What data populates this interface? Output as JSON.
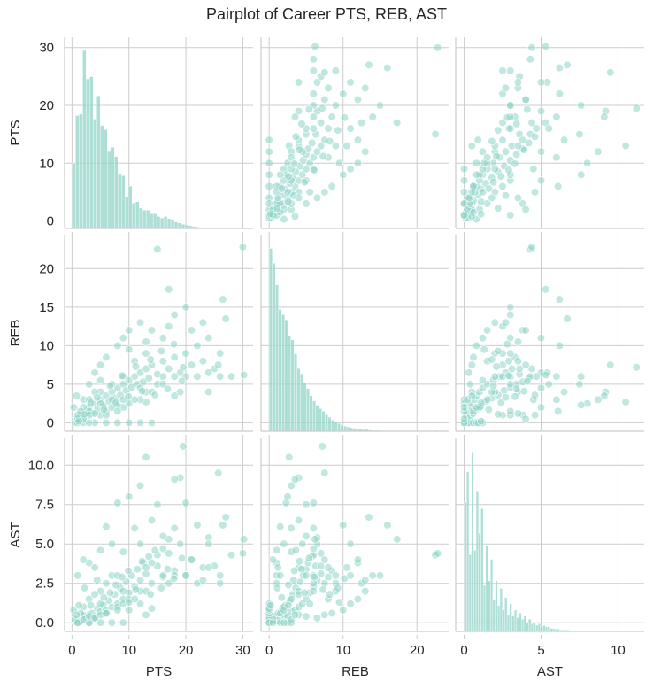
{
  "chart_data": {
    "type": "pairplot",
    "title": "Pairplot of Career PTS, REB, AST",
    "variables": [
      "PTS",
      "REB",
      "AST"
    ],
    "grid": true,
    "color": "#8dd3c7",
    "axes": {
      "PTS": {
        "lim": [
          -1.3,
          31.8
        ],
        "ticks": [
          0,
          10,
          20,
          30
        ],
        "tick_labels": [
          "0",
          "10",
          "20",
          "30"
        ]
      },
      "REB": {
        "lim": [
          -1.1,
          24.4
        ],
        "ticks": [
          0,
          5,
          10,
          15,
          20
        ],
        "x_ticks": [
          0,
          10,
          20
        ],
        "tick_labels": [
          "0",
          "5",
          "10",
          "15",
          "20"
        ],
        "x_tick_labels": [
          "0",
          "10",
          "20"
        ]
      },
      "AST": {
        "lim": [
          -0.55,
          11.7
        ],
        "ticks": [
          0,
          2.5,
          5,
          7.5,
          10
        ],
        "x_ticks": [
          0,
          5,
          10
        ],
        "tick_labels": [
          "0.0",
          "2.5",
          "5.0",
          "7.5",
          "10.0"
        ],
        "x_tick_labels": [
          "0",
          "5",
          "10"
        ]
      }
    },
    "histograms": {
      "PTS": {
        "bin_width": 0.62,
        "relative_counts": [
          9.2,
          16,
          16.2,
          25.2,
          21.2,
          21.5,
          15.5,
          18.8,
          14.6,
          14,
          10.9,
          11.5,
          10.2,
          7.7,
          7.5,
          4.5,
          6,
          3.6,
          3.8,
          2.9,
          2.6,
          2.6,
          2.1,
          2.1,
          1.7,
          1.5,
          1.7,
          1.4,
          1.3,
          0.9,
          0.8,
          0.6,
          0.5,
          0.4,
          0.3,
          0.2,
          0.15,
          0.1,
          0,
          0.1,
          0,
          0,
          0.1,
          0,
          0,
          0,
          0.05
        ]
      },
      "REB": {
        "bin_width": 0.42,
        "relative_counts": [
          21,
          19.3,
          16.8,
          14,
          13.4,
          12.8,
          11,
          10.5,
          8.9,
          7.2,
          6.6,
          5.6,
          4.9,
          4.1,
          3.5,
          3,
          2.6,
          2.3,
          1.9,
          1.6,
          1.3,
          1.1,
          0.9,
          0.7,
          0.6,
          0.5,
          0.4,
          0.35,
          0.3,
          0.25,
          0.2,
          0.2,
          0.15,
          0.1,
          0.1,
          0.1,
          0.05,
          0.05,
          0.05,
          0.05,
          0,
          0.05,
          0,
          0,
          0.05,
          0,
          0,
          0,
          0,
          0,
          0,
          0,
          0,
          0.1
        ]
      },
      "AST": {
        "bin_width": 0.155,
        "relative_counts": [
          8.4,
          10.4,
          5,
          11.7,
          5.3,
          9.1,
          6.4,
          8,
          3,
          5.6,
          3.3,
          4.7,
          2.1,
          3.3,
          1.7,
          2.8,
          1.4,
          2.2,
          1.1,
          1.8,
          1,
          1.4,
          0.9,
          1.2,
          0.8,
          1,
          0.6,
          0.8,
          0.5,
          0.6,
          0.4,
          0.5,
          0.3,
          0.4,
          0.3,
          0.3,
          0.2,
          0.2,
          0.15,
          0.15,
          0.1,
          0.1,
          0.1,
          0.1,
          0.05,
          0.05,
          0.05,
          0.05,
          0.05,
          0.05,
          0.05,
          0.05,
          0.05,
          0,
          0,
          0,
          0,
          0,
          0,
          0,
          0,
          0,
          0.05,
          0,
          0,
          0,
          0,
          0.05,
          0,
          0,
          0.05
        ]
      }
    },
    "points_sample_columns": [
      "PTS",
      "REB",
      "AST"
    ],
    "points_sample": [
      [
        0.5,
        0.3,
        0.1
      ],
      [
        1,
        0.5,
        0.2
      ],
      [
        1.5,
        1,
        0.1
      ],
      [
        2,
        0.8,
        0.4
      ],
      [
        2.5,
        1.5,
        0.3
      ],
      [
        3,
        2,
        0.5
      ],
      [
        3.5,
        1.2,
        0.6
      ],
      [
        4,
        2.5,
        0.4
      ],
      [
        4.5,
        1.8,
        0.9
      ],
      [
        5,
        3,
        0.7
      ],
      [
        5.5,
        2.2,
        1.1
      ],
      [
        6,
        3.5,
        0.8
      ],
      [
        6.5,
        2.8,
        1.4
      ],
      [
        7,
        4,
        1.0
      ],
      [
        7.5,
        3.2,
        1.8
      ],
      [
        8,
        4.5,
        1.2
      ],
      [
        8.5,
        3.6,
        2.2
      ],
      [
        9,
        5,
        1.5
      ],
      [
        9.5,
        4.2,
        2.6
      ],
      [
        10,
        5.5,
        1.9
      ],
      [
        10.5,
        4.6,
        3.0
      ],
      [
        11,
        6,
        2.3
      ],
      [
        11.5,
        5,
        3.4
      ],
      [
        12,
        6.5,
        2.7
      ],
      [
        12.5,
        5.3,
        3.8
      ],
      [
        13,
        7,
        3.1
      ],
      [
        13.5,
        5.8,
        4.2
      ],
      [
        14,
        7.5,
        2.5
      ],
      [
        15,
        6.3,
        3.6
      ],
      [
        16,
        8,
        2.9
      ],
      [
        17,
        7,
        4.4
      ],
      [
        18,
        8.5,
        3.3
      ],
      [
        19,
        6.5,
        5.0
      ],
      [
        20,
        9,
        3.0
      ],
      [
        21,
        7.5,
        4.0
      ],
      [
        22,
        6,
        2.5
      ],
      [
        23,
        8,
        3.5
      ],
      [
        24,
        6.5,
        5.4
      ],
      [
        25,
        7,
        3.6
      ],
      [
        26,
        9,
        2.5
      ],
      [
        27,
        13.5,
        6.7
      ],
      [
        26.5,
        16,
        6.2
      ],
      [
        28,
        6,
        4.3
      ],
      [
        0.5,
        0,
        0.2
      ],
      [
        2,
        0,
        0.5
      ],
      [
        4,
        0,
        0.3
      ],
      [
        6,
        0,
        0.6
      ],
      [
        8,
        0,
        1
      ],
      [
        10,
        0,
        0.8
      ],
      [
        12,
        0,
        1.2
      ],
      [
        14,
        0,
        0.9
      ],
      [
        3,
        0,
        0
      ],
      [
        1,
        0,
        0
      ],
      [
        1,
        0.5,
        0
      ],
      [
        3,
        1.5,
        0
      ],
      [
        5,
        2.5,
        0
      ],
      [
        7,
        3,
        0
      ],
      [
        9,
        2,
        0
      ],
      [
        13,
        4,
        0.5
      ],
      [
        2,
        3,
        0.2
      ],
      [
        3,
        5,
        0.4
      ],
      [
        4,
        6.5,
        0.3
      ],
      [
        5,
        7.5,
        0.5
      ],
      [
        6,
        8.5,
        0.6
      ],
      [
        8,
        10,
        0.8
      ],
      [
        9,
        11,
        1.2
      ],
      [
        10,
        12,
        1.5
      ],
      [
        12,
        13,
        2
      ],
      [
        13,
        10.5,
        3.5
      ],
      [
        14,
        12,
        3.8
      ],
      [
        16,
        11,
        3
      ],
      [
        17,
        17.3,
        5.3
      ],
      [
        15,
        22.5,
        4.3
      ],
      [
        30,
        22.8,
        4.4
      ],
      [
        30.2,
        6.2,
        5.3
      ],
      [
        19.5,
        7.2,
        11.2
      ],
      [
        13,
        2.7,
        10.5
      ],
      [
        25.7,
        7.5,
        9.5
      ],
      [
        19,
        4,
        9.2
      ],
      [
        18,
        3.5,
        9.1
      ],
      [
        12,
        3,
        8.7
      ],
      [
        10,
        2.5,
        8
      ],
      [
        8,
        2.3,
        7.6
      ],
      [
        15,
        5,
        7.5
      ],
      [
        20,
        6,
        7.6
      ],
      [
        22,
        10,
        6.2
      ],
      [
        24,
        11,
        5
      ],
      [
        6,
        1.5,
        6.1
      ],
      [
        7,
        2,
        5
      ],
      [
        5,
        1,
        4.6
      ],
      [
        3,
        1,
        3.8
      ],
      [
        1,
        1,
        3
      ],
      [
        2,
        0.5,
        4
      ],
      [
        4,
        1.2,
        3.5
      ],
      [
        11,
        3,
        6
      ],
      [
        14,
        4,
        6.5
      ],
      [
        16,
        5,
        5.5
      ],
      [
        18,
        6,
        6
      ],
      [
        20,
        15,
        3
      ],
      [
        21,
        12,
        4
      ],
      [
        9,
        6,
        2
      ],
      [
        7,
        5,
        3
      ],
      [
        5,
        4,
        2
      ],
      [
        11,
        8,
        1.5
      ],
      [
        13,
        9,
        2
      ],
      [
        3,
        3,
        1.5
      ],
      [
        2,
        2,
        1
      ],
      [
        1.5,
        1.5,
        0.6
      ],
      [
        6,
        1,
        2.5
      ],
      [
        8,
        1.5,
        3
      ],
      [
        10,
        9.5,
        1.3
      ],
      [
        17,
        12.5,
        2.5
      ],
      [
        23,
        13,
        2.7
      ],
      [
        18,
        14,
        3
      ],
      [
        5,
        5.5,
        1.2
      ],
      [
        4,
        4,
        1.8
      ],
      [
        9,
        3,
        4.5
      ],
      [
        12,
        4.5,
        5
      ],
      [
        16,
        6,
        4.7
      ],
      [
        24,
        4,
        3.5
      ],
      [
        26,
        6,
        3
      ],
      [
        0.3,
        2,
        0.8
      ],
      [
        0.8,
        3.5,
        0.5
      ],
      [
        1.2,
        0.2,
        1.1
      ],
      [
        2.2,
        1.1,
        2.2
      ],
      [
        3.3,
        2.6,
        1.1
      ],
      [
        4.4,
        3.3,
        2.7
      ],
      [
        5.6,
        1.7,
        1.6
      ],
      [
        6.7,
        4.8,
        1.9
      ],
      [
        7.7,
        2.6,
        2.4
      ],
      [
        8.8,
        6.1,
        2.9
      ],
      [
        9.9,
        3.4,
        3.3
      ],
      [
        11.2,
        7.3,
        2.1
      ],
      [
        12.3,
        4.1,
        3.9
      ],
      [
        13.8,
        8.2,
        1.8
      ],
      [
        14.6,
        3.6,
        4.6
      ],
      [
        15.7,
        9.3,
        2.2
      ],
      [
        16.8,
        4.4,
        3.4
      ],
      [
        17.9,
        10.2,
        2.8
      ],
      [
        19.3,
        5.4,
        4.1
      ]
    ]
  }
}
